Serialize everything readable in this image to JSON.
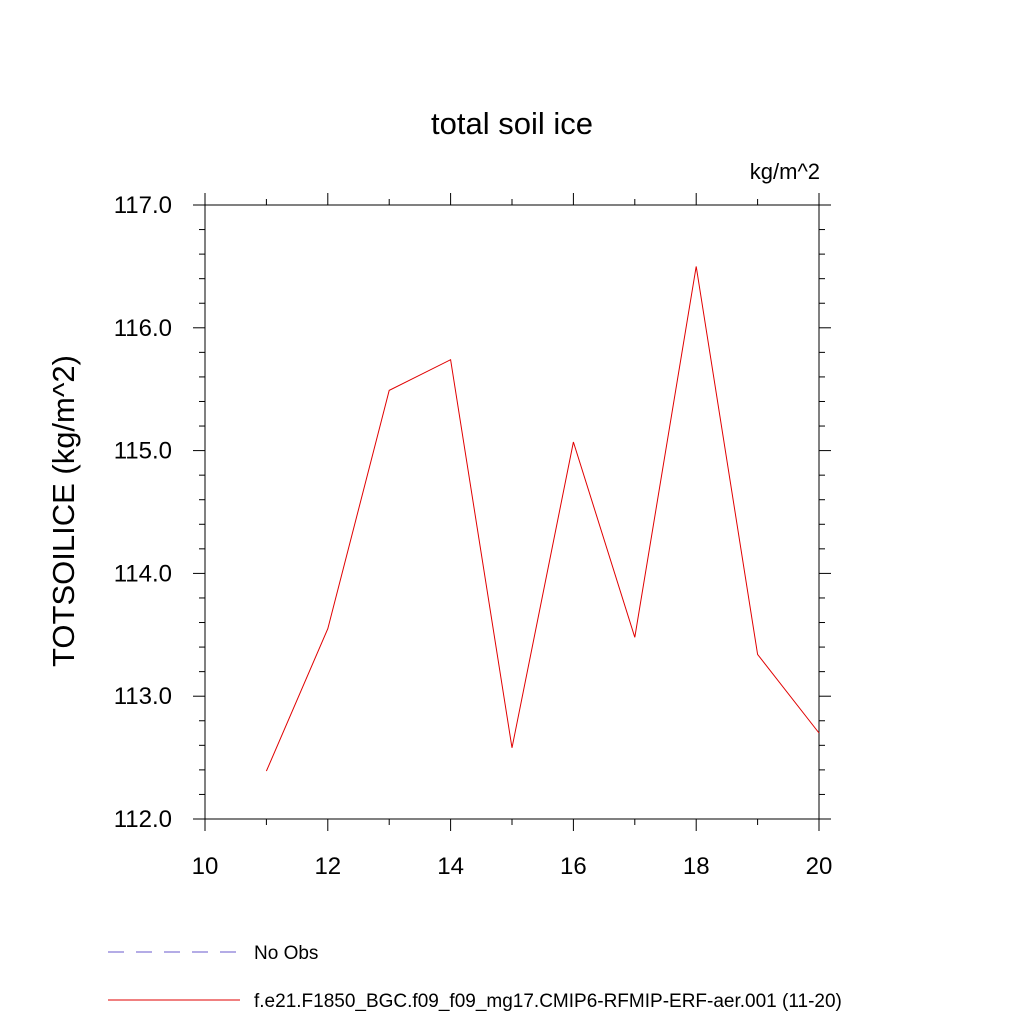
{
  "chart_data": {
    "type": "line",
    "title": "total soil ice",
    "units_label": "kg/m^2",
    "ylabel": "TOTSOILICE  (kg/m^2)",
    "xlabel": "",
    "xlim": [
      10,
      20
    ],
    "ylim": [
      112.0,
      117.0
    ],
    "x_ticks": [
      10,
      12,
      14,
      16,
      18,
      20
    ],
    "x_tick_labels": [
      "10",
      "12",
      "14",
      "16",
      "18",
      "20"
    ],
    "y_ticks": [
      112.0,
      113.0,
      114.0,
      115.0,
      116.0,
      117.0
    ],
    "y_tick_labels": [
      "112.0",
      "113.0",
      "114.0",
      "115.0",
      "116.0",
      "117.0"
    ],
    "grid": false,
    "series": [
      {
        "name": "f.e21.F1850_BGC.f09_f09_mg17.CMIP6-RFMIP-ERF-aer.001 (11-20)",
        "color": "#e00000",
        "x": [
          11,
          12,
          13,
          14,
          15,
          16,
          17,
          18,
          19,
          20
        ],
        "y": [
          112.39,
          113.55,
          115.49,
          115.74,
          112.58,
          115.07,
          113.48,
          116.5,
          113.34,
          112.7
        ]
      }
    ],
    "legend": [
      {
        "label": "No Obs",
        "color": "#6a5acd",
        "dash": true
      },
      {
        "label": "f.e21.F1850_BGC.f09_f09_mg17.CMIP6-RFMIP-ERF-aer.001 (11-20)",
        "color": "#e00000",
        "dash": false
      }
    ],
    "legend_position": "bottom-left"
  }
}
